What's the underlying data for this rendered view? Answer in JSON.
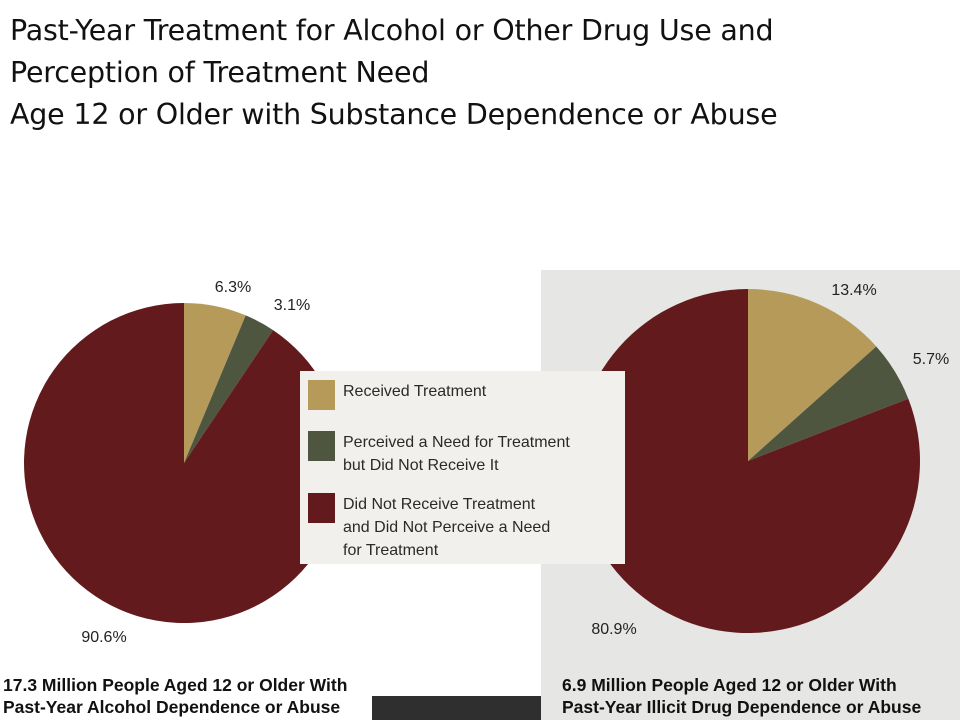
{
  "title": {
    "line1": "Past-Year Treatment for Alcohol or Other Drug Use and",
    "line2": "Perception of Treatment Need",
    "line3": "Age 12 or Older with Substance Dependence or Abuse"
  },
  "colors": {
    "received_treatment": "#b59a5a",
    "perceived_need": "#4e5640",
    "did_not_perceive": "#631a1d",
    "right_panel_bg": "#e6e6e4"
  },
  "legend": {
    "items": [
      {
        "label": "Received Treatment",
        "color": "#b59a5a"
      },
      {
        "label": "Perceived a Need for Treatment\nbut Did Not Receive It",
        "color": "#4e5640"
      },
      {
        "label": "Did Not Receive Treatment\nand Did Not Perceive a Need\nfor Treatment",
        "color": "#631a1d"
      }
    ]
  },
  "captions": {
    "left": {
      "line1": "17.3 Million People Aged 12 or Older With",
      "line2": "Past-Year Alcohol Dependence or Abuse"
    },
    "right": {
      "line1": "6.9 Million People Aged 12 or Older With",
      "line2": "Past-Year Illicit Drug Dependence or Abuse"
    }
  },
  "chart_data": [
    {
      "type": "pie",
      "title": "17.3 Million People Aged 12 or Older With Past-Year Alcohol Dependence or Abuse",
      "categories": [
        "Received Treatment",
        "Perceived a Need for Treatment but Did Not Receive It",
        "Did Not Receive Treatment and Did Not Perceive a Need for Treatment"
      ],
      "values": [
        6.3,
        3.1,
        90.6
      ],
      "labels": [
        "6.3%",
        "3.1%",
        "90.6%"
      ],
      "colors": [
        "#b59a5a",
        "#4e5640",
        "#631a1d"
      ]
    },
    {
      "type": "pie",
      "title": "6.9 Million People Aged 12 or Older With Past-Year Illicit Drug Dependence or Abuse",
      "categories": [
        "Received Treatment",
        "Perceived a Need for Treatment but Did Not Receive It",
        "Did Not Receive Treatment and Did Not Perceive a Need for Treatment"
      ],
      "values": [
        13.4,
        5.7,
        80.9
      ],
      "labels": [
        "13.4%",
        "5.7%",
        "80.9%"
      ],
      "colors": [
        "#b59a5a",
        "#4e5640",
        "#631a1d"
      ]
    }
  ]
}
